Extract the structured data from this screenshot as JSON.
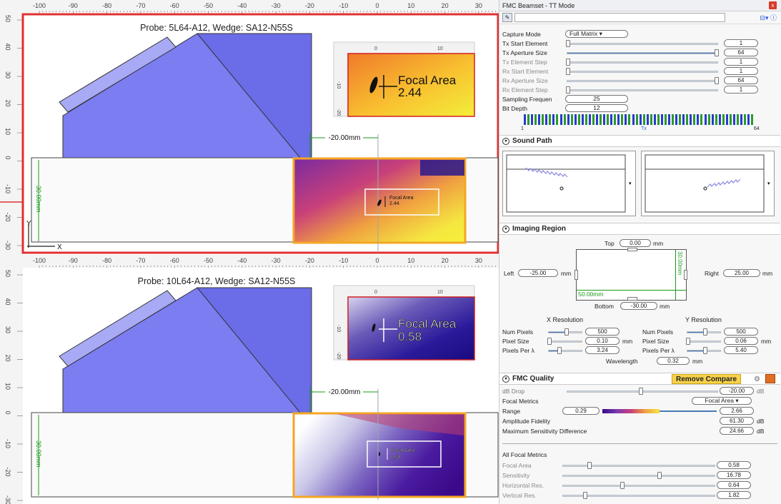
{
  "top_view": {
    "ruler_x": [
      "-100",
      "-90",
      "-80",
      "-70",
      "-60",
      "-50",
      "-40",
      "-30",
      "-20",
      "-10",
      "0",
      "10",
      "20",
      "30"
    ],
    "ruler_y": [
      "50",
      "40",
      "30",
      "20",
      "10",
      "0",
      "-10",
      "-20",
      "-30"
    ],
    "probe_label": "Probe: 5L64-A12, Wedge: SA12-N55S",
    "offset_label": "-20.00mm",
    "depth_label": "30.00mm",
    "axis_y": "Y",
    "axis_x": "X",
    "inset_tick_0": "0",
    "inset_tick_10": "10",
    "inset_tick_neg10": "-10",
    "inset_tick_neg20": "-20",
    "inset_metric_title": "Focal Area",
    "inset_metric_value": "2.44",
    "overlay_metric_title": "Focal Area",
    "overlay_metric_value": "2.44"
  },
  "bottom_view": {
    "ruler_x": [
      "-100",
      "-90",
      "-80",
      "-70",
      "-60",
      "-50",
      "-40",
      "-30",
      "-20",
      "-10",
      "0",
      "10",
      "20",
      "30"
    ],
    "ruler_y": [
      "50",
      "40",
      "30",
      "20",
      "10",
      "0",
      "-10",
      "-20",
      "-30"
    ],
    "probe_label": "Probe: 10L64-A12, Wedge: SA12-N55S",
    "offset_label": "-20.00mm",
    "depth_label": "30.00mm",
    "inset_tick_0": "0",
    "inset_tick_10": "10",
    "inset_tick_neg10": "-10",
    "inset_tick_neg20": "-20",
    "inset_metric_title": "Focal Area",
    "inset_metric_value": "0.58",
    "overlay_metric_title": "Focal Area",
    "overlay_metric_value": "0.58"
  },
  "panel": {
    "title": "FMC Beamset - TT Mode",
    "close": "x",
    "toolbar_right": "⊟▾ ⓘ",
    "capture": {
      "mode_label": "Capture Mode",
      "mode_value": "Full Matrix",
      "tx_start_label": "Tx Start Element",
      "tx_start_value": "1",
      "tx_aperture_label": "Tx Aperture Size",
      "tx_aperture_value": "64",
      "tx_step_label": "Tx Element Step",
      "tx_step_value": "1",
      "rx_start_label": "Rx Start Element",
      "rx_start_value": "1",
      "rx_aperture_label": "Rx Aperture Size",
      "rx_aperture_value": "64",
      "rx_step_label": "Rx Element Step",
      "rx_step_value": "1",
      "sampling_label": "Sampling Frequen",
      "sampling_value": "25",
      "bitdepth_label": "Bit Depth",
      "bitdepth_value": "12",
      "elements_start": "1",
      "elements_mid": "Tx",
      "elements_end": "64"
    },
    "sound_path": {
      "title": "Sound Path"
    },
    "imaging": {
      "title": "Imaging Region",
      "top_label": "Top",
      "top_value": "0.00",
      "top_unit": "mm",
      "left_label": "Left",
      "left_value": "-25.00",
      "left_unit": "mm",
      "right_label": "Right",
      "right_value": "25.00",
      "right_unit": "mm",
      "bottom_label": "Bottom",
      "bottom_value": "-30.00",
      "bottom_unit": "mm",
      "width_label": "50.00mm",
      "height_label": "30.00mm",
      "xres_title": "X Resolution",
      "yres_title": "Y Resolution",
      "num_pixels_label": "Num Pixels",
      "pixel_size_label": "Pixel Size",
      "pixels_per_label": "Pixels Per λ",
      "x_num_pixels": "500",
      "x_pixel_size": "0.10",
      "x_pixels_per": "3.24",
      "y_num_pixels": "500",
      "y_pixel_size": "0.06",
      "y_pixels_per": "5.40",
      "mm": "mm",
      "wavelength_label": "Wavelength",
      "wavelength_value": "0.32",
      "wavelength_unit": "mm"
    },
    "quality": {
      "title": "FMC Quality",
      "remove_compare": "Remove Compare",
      "db_drop_label": "dB Drop",
      "db_drop_value": "-20.00",
      "db_unit": "dB",
      "focal_metrics_label": "Focal Metrics",
      "focal_metrics_value": "Focal Area",
      "range_label": "Range",
      "range_min": "0.29",
      "range_max": "2.66",
      "amp_fidelity_label": "Amplitude Fidelity",
      "amp_fidelity_value": "61.30",
      "max_sens_label": "Maximum Sensitivity Difference",
      "max_sens_value": "24.66",
      "all_metrics_title": "All Focal Metrics",
      "focal_area_label": "Focal Area",
      "focal_area_value": "0.58",
      "sensitivity_label": "Sensitivity",
      "sensitivity_value": "16.78",
      "horizontal_label": "Horizontal Res.",
      "horizontal_value": "0.64",
      "vertical_label": "Vertical Res.",
      "vertical_value": "1.82"
    }
  }
}
